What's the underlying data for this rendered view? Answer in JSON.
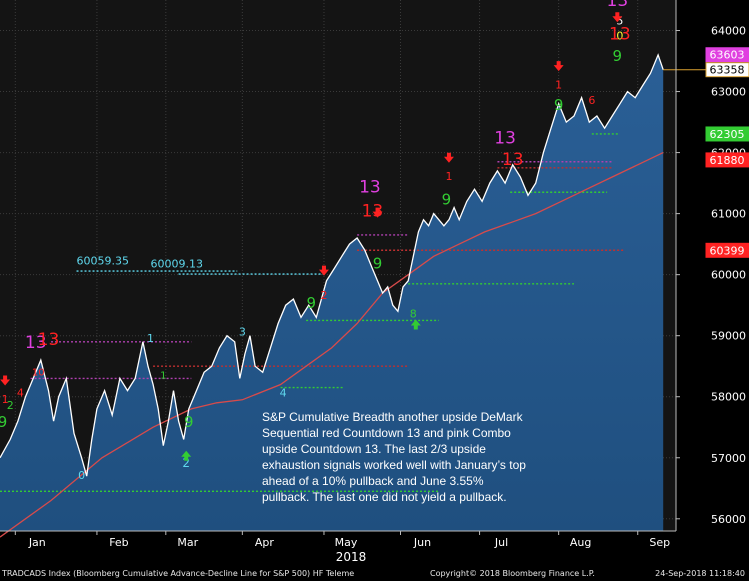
{
  "chart_data": {
    "type": "line",
    "title": "",
    "xlabel": "2018",
    "ylabel": "",
    "ylim": [
      55800,
      64500
    ],
    "y_ticks": [
      56000,
      57000,
      58000,
      59000,
      60000,
      61000,
      62000,
      63000,
      64000
    ],
    "x_ticks": [
      {
        "label": "Jan",
        "x": 6
      },
      {
        "label": "Feb",
        "x": 38
      },
      {
        "label": "Mar",
        "x": 65
      },
      {
        "label": "Apr",
        "x": 95
      },
      {
        "label": "May",
        "x": 127
      },
      {
        "label": "Jun",
        "x": 157
      },
      {
        "label": "Jul",
        "x": 188
      },
      {
        "label": "Aug",
        "x": 219
      },
      {
        "label": "Sep",
        "x": 250
      }
    ],
    "x_range": [
      0,
      265
    ],
    "grid": true,
    "series": [
      {
        "type": "line",
        "color": "#ffffff",
        "fill": "#1f4f7f",
        "x": [
          0,
          4,
          7,
          10,
          13,
          16,
          19,
          21,
          23,
          26,
          29,
          32,
          34,
          36,
          38,
          41,
          44,
          47,
          50,
          53,
          56,
          58,
          60,
          62,
          64,
          66,
          68,
          70,
          72,
          74,
          76,
          78,
          80,
          83,
          86,
          89,
          92,
          94,
          96,
          98,
          100,
          103,
          106,
          109,
          112,
          115,
          118,
          121,
          124,
          126,
          128,
          131,
          134,
          137,
          140,
          143,
          146,
          148,
          150,
          152,
          154,
          156,
          158,
          160,
          162,
          164,
          166,
          168,
          170,
          172,
          174,
          176,
          178,
          180,
          183,
          186,
          189,
          192,
          195,
          198,
          201,
          204,
          207,
          210,
          213,
          216,
          219,
          222,
          225,
          228,
          231,
          234,
          237,
          240,
          243,
          246,
          249,
          252,
          255,
          258,
          260
        ],
        "y": [
          57000,
          57300,
          57600,
          58000,
          58300,
          58600,
          58100,
          57600,
          58000,
          58300,
          57400,
          57000,
          56700,
          57300,
          57800,
          58100,
          57700,
          58300,
          58100,
          58300,
          58900,
          58500,
          58200,
          57800,
          57200,
          57600,
          58100,
          57600,
          57300,
          57800,
          58000,
          58200,
          58400,
          58500,
          58800,
          59000,
          58900,
          58300,
          58700,
          59000,
          58500,
          58400,
          58800,
          59200,
          59500,
          59600,
          59300,
          59500,
          59300,
          59600,
          59900,
          60100,
          60300,
          60500,
          60600,
          60400,
          60100,
          59900,
          59700,
          59800,
          59500,
          59400,
          59800,
          59900,
          60300,
          60700,
          60900,
          60800,
          61000,
          60900,
          60800,
          60900,
          61100,
          60900,
          61200,
          61400,
          61200,
          61500,
          61700,
          61500,
          61800,
          61600,
          61300,
          61500,
          62000,
          62400,
          62800,
          62500,
          62600,
          62900,
          62500,
          62600,
          62400,
          62600,
          62800,
          63000,
          62900,
          63100,
          63300,
          63600,
          63358
        ]
      },
      {
        "type": "line",
        "color": "#d84b4b",
        "x": [
          0,
          20,
          40,
          60,
          75,
          85,
          95,
          110,
          120,
          130,
          140,
          150,
          160,
          170,
          180,
          190,
          200,
          210,
          220,
          230,
          240,
          250,
          260
        ],
        "y": [
          55700,
          56300,
          57000,
          57500,
          57800,
          57900,
          57950,
          58200,
          58500,
          58800,
          59200,
          59700,
          60000,
          60300,
          60500,
          60700,
          60850,
          61000,
          61200,
          61400,
          61600,
          61800,
          62000
        ]
      }
    ],
    "axis_labels_right": [
      {
        "value": 63603,
        "color": "#e040e0"
      },
      {
        "value": 63358,
        "color": "#ffffff",
        "outline": "#d9a030"
      },
      {
        "value": 62305,
        "color": "#33cc33"
      },
      {
        "value": 61880,
        "color": "#ff2222"
      },
      {
        "value": 60399,
        "color": "#ff2222"
      }
    ],
    "annotations": [
      {
        "text": "60059.35",
        "x": 30,
        "y": 60100,
        "color": "#5fd8ee"
      },
      {
        "text": "60009.13",
        "x": 59,
        "y": 60050,
        "color": "#5fd8ee"
      }
    ],
    "levels": [
      {
        "y": 60059.35,
        "x0": 30,
        "x1": 93,
        "color": "#5fd8ee"
      },
      {
        "y": 60009.13,
        "x0": 70,
        "x1": 127,
        "color": "#5fd8ee"
      },
      {
        "y": 58900,
        "x0": 20,
        "x1": 75,
        "color": "#b040b0"
      },
      {
        "y": 58300,
        "x0": 12,
        "x1": 75,
        "color": "#b040b0"
      },
      {
        "y": 58500,
        "x0": 60,
        "x1": 160,
        "color": "#c03030"
      },
      {
        "y": 58150,
        "x0": 110,
        "x1": 135,
        "color": "#33cc33"
      },
      {
        "y": 59250,
        "x0": 120,
        "x1": 172,
        "color": "#33cc33"
      },
      {
        "y": 60650,
        "x0": 140,
        "x1": 160,
        "color": "#b040b0"
      },
      {
        "y": 60400,
        "x0": 140,
        "x1": 245,
        "color": "#c03030"
      },
      {
        "y": 59850,
        "x0": 160,
        "x1": 225,
        "color": "#33cc33"
      },
      {
        "y": 61850,
        "x0": 195,
        "x1": 240,
        "color": "#b040b0"
      },
      {
        "y": 61750,
        "x0": 195,
        "x1": 240,
        "color": "#c03030"
      },
      {
        "y": 61350,
        "x0": 200,
        "x1": 238,
        "color": "#33cc33"
      },
      {
        "y": 62305,
        "x0": 232,
        "x1": 243,
        "color": "#33cc33"
      },
      {
        "y": 56450,
        "x0": 0,
        "x1": 172,
        "color": "#33cc33"
      }
    ],
    "counts": [
      {
        "t": "9",
        "x": 1,
        "y": 57500,
        "c": "#33cc33",
        "s": 15
      },
      {
        "t": "2",
        "x": 4,
        "y": 57800,
        "c": "#33cc33",
        "s": 11
      },
      {
        "t": "4",
        "x": 8,
        "y": 58000,
        "c": "#ff2222",
        "s": 11
      },
      {
        "t": "1",
        "x": 2,
        "y": 57900,
        "c": "#ff2222",
        "s": 11
      },
      {
        "t": "13",
        "x": 14,
        "y": 58800,
        "c": "#e040e0",
        "s": 17
      },
      {
        "t": "13",
        "x": 19,
        "y": 58850,
        "c": "#ff2222",
        "s": 17
      },
      {
        "t": "10",
        "x": 15,
        "y": 58350,
        "c": "#ff2222",
        "s": 10
      },
      {
        "t": "0",
        "x": 32,
        "y": 56650,
        "c": "#5fd8ee",
        "s": 11
      },
      {
        "t": "1",
        "x": 59,
        "y": 58900,
        "c": "#5fd8ee",
        "s": 11
      },
      {
        "t": "1",
        "x": 64,
        "y": 58300,
        "c": "#33cc33",
        "s": 10
      },
      {
        "t": "2",
        "x": 73,
        "y": 56850,
        "c": "#5fd8ee",
        "s": 12
      },
      {
        "t": "9",
        "x": 74,
        "y": 57500,
        "c": "#33cc33",
        "s": 15
      },
      {
        "t": "3",
        "x": 95,
        "y": 59000,
        "c": "#5fd8ee",
        "s": 11
      },
      {
        "t": "4",
        "x": 111,
        "y": 58000,
        "c": "#5fd8ee",
        "s": 11
      },
      {
        "t": "9",
        "x": 122,
        "y": 59450,
        "c": "#33cc33",
        "s": 15
      },
      {
        "t": "2",
        "x": 127,
        "y": 59600,
        "c": "#ff2222",
        "s": 11
      },
      {
        "t": "13",
        "x": 145,
        "y": 61350,
        "c": "#e040e0",
        "s": 17
      },
      {
        "t": "13",
        "x": 146,
        "y": 60950,
        "c": "#ff2222",
        "s": 17
      },
      {
        "t": "9",
        "x": 148,
        "y": 60100,
        "c": "#33cc33",
        "s": 15
      },
      {
        "t": "8",
        "x": 162,
        "y": 59300,
        "c": "#33cc33",
        "s": 11
      },
      {
        "t": "1",
        "x": 176,
        "y": 61550,
        "c": "#ff2222",
        "s": 11
      },
      {
        "t": "9",
        "x": 175,
        "y": 61150,
        "c": "#33cc33",
        "s": 15
      },
      {
        "t": "13",
        "x": 198,
        "y": 62150,
        "c": "#e040e0",
        "s": 17
      },
      {
        "t": "13",
        "x": 201,
        "y": 61800,
        "c": "#ff2222",
        "s": 17
      },
      {
        "t": "9",
        "x": 219,
        "y": 62700,
        "c": "#33cc33",
        "s": 15
      },
      {
        "t": "1",
        "x": 219,
        "y": 63050,
        "c": "#ff2222",
        "s": 11
      },
      {
        "t": "6",
        "x": 232,
        "y": 62800,
        "c": "#ff2222",
        "s": 11
      },
      {
        "t": "9",
        "x": 242,
        "y": 63500,
        "c": "#33cc33",
        "s": 15
      },
      {
        "t": "13",
        "x": 242,
        "y": 64400,
        "c": "#e040e0",
        "s": 17
      },
      {
        "t": "5",
        "x": 243,
        "y": 64100,
        "c": "#ffffff",
        "s": 11
      },
      {
        "t": "0",
        "x": 243,
        "y": 63850,
        "c": "#ffff33",
        "s": 11
      },
      {
        "t": "13",
        "x": 243,
        "y": 63850,
        "c": "#ff2222",
        "s": 17
      }
    ],
    "arrows": [
      {
        "x": 2,
        "y": 58250,
        "dir": "down",
        "c": "#ff2222"
      },
      {
        "x": 127,
        "y": 60050,
        "dir": "down",
        "c": "#ff2222"
      },
      {
        "x": 148,
        "y": 61000,
        "dir": "down",
        "c": "#ff2222"
      },
      {
        "x": 176,
        "y": 61900,
        "dir": "down",
        "c": "#ff2222"
      },
      {
        "x": 219,
        "y": 63400,
        "dir": "down",
        "c": "#ff2222"
      },
      {
        "x": 242,
        "y": 64200,
        "dir": "down",
        "c": "#ff2222"
      },
      {
        "x": 73,
        "y": 57050,
        "dir": "up",
        "c": "#33cc33"
      },
      {
        "x": 163,
        "y": 59200,
        "dir": "up",
        "c": "#33cc33"
      }
    ],
    "comment": "S&P Cumulative Breadth another upside DeMark Sequential red Countdown 13 and pink Combo upside Countdown 13.  The last 2/3 upside exhaustion signals worked well with January’s top ahead of a 10% pullback and June 3.55% pullback. The last one did not yield a pullback."
  },
  "footer": {
    "left": "TRADCADS Index (Bloomberg Cumulative Advance-Decline Line for S&P 500) HF Teleme",
    "center": "Copyright© 2018 Bloomberg Finance L.P.",
    "right": "24-Sep-2018 11:18:40"
  }
}
